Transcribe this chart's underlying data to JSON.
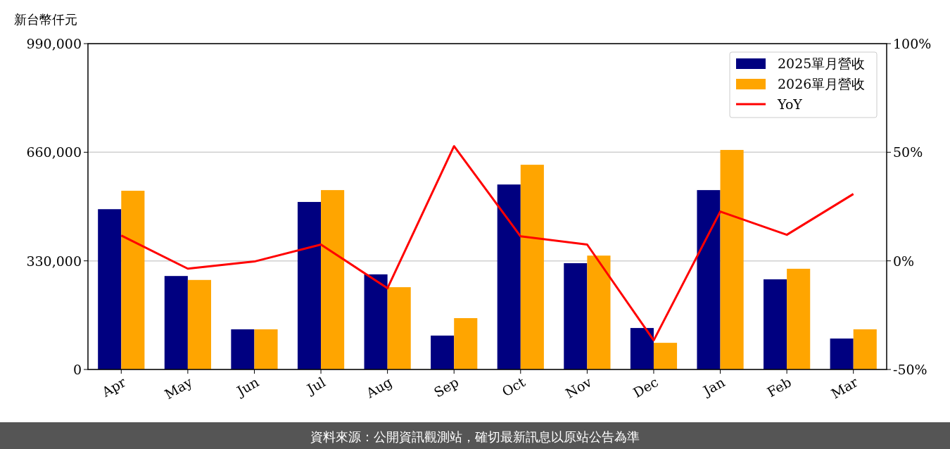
{
  "chart_data": {
    "type": "bar",
    "ylabel": "新台幣仟元",
    "categories": [
      "Apr",
      "May",
      "Jun",
      "Jul",
      "Aug",
      "Sep",
      "Oct",
      "Nov",
      "Dec",
      "Jan",
      "Feb",
      "Mar"
    ],
    "series": [
      {
        "name": "2025單月營收",
        "color": "#000080",
        "values": [
          487000,
          284000,
          122000,
          509000,
          289000,
          103000,
          562000,
          323000,
          126000,
          545000,
          274000,
          94000
        ]
      },
      {
        "name": "2026單月營收",
        "color": "#ffa500",
        "values": [
          543000,
          272000,
          122000,
          545000,
          250000,
          156000,
          622000,
          346000,
          81000,
          667000,
          306000,
          122000
        ]
      },
      {
        "name": "YoY",
        "type": "line",
        "axis": "y2",
        "color": "#ff0000",
        "values": [
          11.7,
          -3.6,
          -0.3,
          7.5,
          -12.6,
          52.8,
          11.3,
          7.5,
          -36.6,
          22.7,
          12,
          30.8
        ]
      }
    ],
    "ylim": [
      0,
      990000
    ],
    "yticks": [
      0,
      {
        "value": 330000,
        "label": "330,000"
      },
      {
        "value": 660000,
        "label": "660,000"
      },
      {
        "value": 990000,
        "label": "990,000"
      }
    ],
    "y2lim": [
      -50,
      100
    ],
    "y2ticks": [
      {
        "value": -50,
        "label": "-50%"
      },
      {
        "value": 0,
        "label": "0%"
      },
      {
        "value": 50,
        "label": "50%"
      },
      {
        "value": 100,
        "label": "100%"
      }
    ],
    "grid": "y",
    "legend": "top right",
    "annotations": [
      "資料來源：公開資訊觀測站，確切最新訊息以原站公告為準"
    ]
  }
}
